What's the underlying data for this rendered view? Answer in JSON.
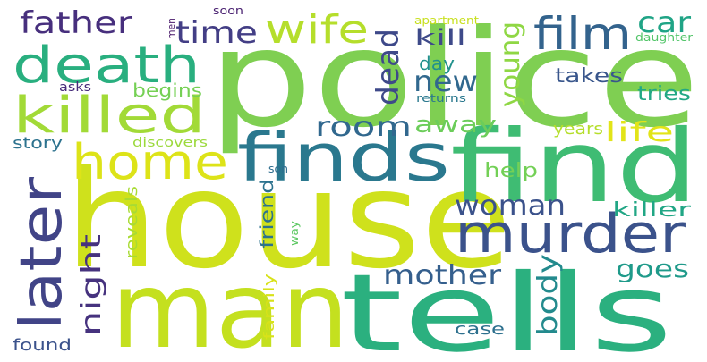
{
  "word_cloud": {
    "words": [
      {
        "text": "police",
        "color": "#7fcf52"
      },
      {
        "text": "house",
        "color": "#cfe11c"
      },
      {
        "text": "man",
        "color": "#c4e01f"
      },
      {
        "text": "tells",
        "color": "#2bb07f"
      },
      {
        "text": "find",
        "color": "#3fbc73"
      },
      {
        "text": "finds",
        "color": "#2a788e"
      },
      {
        "text": "murder",
        "color": "#3b528b"
      },
      {
        "text": "later",
        "color": "#414487"
      },
      {
        "text": "death",
        "color": "#29af7f"
      },
      {
        "text": "killed",
        "color": "#a2da37"
      },
      {
        "text": "home",
        "color": "#dde318"
      },
      {
        "text": "film",
        "color": "#33638d"
      },
      {
        "text": "wife",
        "color": "#b5de2b"
      },
      {
        "text": "father",
        "color": "#472f7d"
      },
      {
        "text": "time",
        "color": "#433e85"
      },
      {
        "text": "car",
        "color": "#20a486"
      },
      {
        "text": "dead",
        "color": "#3e4989"
      },
      {
        "text": "young",
        "color": "#8fd744"
      },
      {
        "text": "new",
        "color": "#31688e"
      },
      {
        "text": "kill",
        "color": "#3e4a89"
      },
      {
        "text": "day",
        "color": "#21918c"
      },
      {
        "text": "room",
        "color": "#31688e"
      },
      {
        "text": "away",
        "color": "#6ccd5a"
      },
      {
        "text": "life",
        "color": "#e2e418"
      },
      {
        "text": "years",
        "color": "#b5de2b"
      },
      {
        "text": "woman",
        "color": "#3b528b"
      },
      {
        "text": "takes",
        "color": "#39568c"
      },
      {
        "text": "begins",
        "color": "#75d054"
      },
      {
        "text": "tries",
        "color": "#22a884"
      },
      {
        "text": "help",
        "color": "#73d056"
      },
      {
        "text": "killer",
        "color": "#21a685"
      },
      {
        "text": "mother",
        "color": "#355f8d"
      },
      {
        "text": "night",
        "color": "#46327e"
      },
      {
        "text": "body",
        "color": "#238a8d"
      },
      {
        "text": "goes",
        "color": "#1f9a8a"
      },
      {
        "text": "friend",
        "color": "#2c728e"
      },
      {
        "text": "reveals",
        "color": "#a8db34"
      },
      {
        "text": "story",
        "color": "#2c728e"
      },
      {
        "text": "discovers",
        "color": "#9bd93c"
      },
      {
        "text": "asks",
        "color": "#472c7a"
      },
      {
        "text": "found",
        "color": "#3b528b"
      },
      {
        "text": "case",
        "color": "#2d708e"
      },
      {
        "text": "family",
        "color": "#d8e219"
      },
      {
        "text": "son",
        "color": "#2e6d8e"
      },
      {
        "text": "way",
        "color": "#5dc863"
      },
      {
        "text": "soon",
        "color": "#481f70"
      },
      {
        "text": "men",
        "color": "#48186a"
      },
      {
        "text": "apartment",
        "color": "#c8e020"
      },
      {
        "text": "daughter",
        "color": "#52c569"
      },
      {
        "text": "returns",
        "color": "#2a788e"
      }
    ]
  }
}
